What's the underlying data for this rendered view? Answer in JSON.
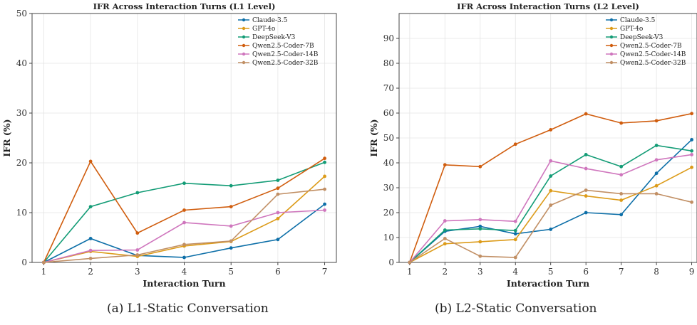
{
  "chart_data": [
    {
      "type": "line",
      "title": "IFR Across Interaction Turns (L1 Level)",
      "xlabel": "Interaction Turn",
      "ylabel": "IFR (%)",
      "x": [
        1,
        2,
        3,
        4,
        5,
        6,
        7
      ],
      "xlim": [
        0.75,
        7.25
      ],
      "ylim": [
        0,
        50
      ],
      "yticks": [
        0,
        10,
        20,
        30,
        40,
        50
      ],
      "grid": true,
      "legend": "top-right",
      "series": [
        {
          "name": "Claude-3.5",
          "color": "#0d6fa8",
          "values": [
            0,
            4.8,
            1.4,
            1.0,
            2.9,
            4.6,
            11.7
          ]
        },
        {
          "name": "GPT-4o",
          "color": "#dc9b19",
          "values": [
            0,
            2.2,
            1.2,
            3.3,
            4.2,
            8.8,
            17.3
          ]
        },
        {
          "name": "DeepSeek-V3",
          "color": "#139c76",
          "values": [
            0,
            11.2,
            14.0,
            15.9,
            15.4,
            16.5,
            20.1
          ]
        },
        {
          "name": "Qwen2.5-Coder-7B",
          "color": "#d05d0e",
          "values": [
            0,
            20.3,
            5.9,
            10.5,
            11.2,
            14.9,
            20.9
          ]
        },
        {
          "name": "Qwen2.5-Coder-14B",
          "color": "#cf76bd",
          "values": [
            0,
            2.4,
            2.5,
            8.0,
            7.3,
            10.0,
            10.5
          ]
        },
        {
          "name": "Qwen2.5-Coder-32B",
          "color": "#c18f64",
          "values": [
            0,
            0.8,
            1.5,
            3.6,
            4.3,
            13.7,
            14.7
          ]
        }
      ]
    },
    {
      "type": "line",
      "title": "IFR Across Interaction Turns (L2 Level)",
      "xlabel": "Interaction Turn",
      "ylabel": "IFR (%)",
      "x": [
        1,
        2,
        3,
        4,
        5,
        6,
        7,
        8,
        9
      ],
      "xlim": [
        0.7,
        9.15
      ],
      "ylim": [
        0,
        100
      ],
      "yticks": [
        0,
        10,
        20,
        30,
        40,
        50,
        60,
        70,
        80,
        90
      ],
      "grid": true,
      "legend": "top-right",
      "series": [
        {
          "name": "Claude-3.5",
          "color": "#0d6fa8",
          "values": [
            0,
            12.5,
            14.5,
            11.5,
            13.3,
            20.0,
            19.2,
            35.8,
            49.3
          ]
        },
        {
          "name": "GPT-4o",
          "color": "#dc9b19",
          "values": [
            0,
            7.5,
            8.3,
            9.2,
            28.8,
            26.7,
            25.0,
            30.8,
            38.2
          ]
        },
        {
          "name": "DeepSeek-V3",
          "color": "#139c76",
          "values": [
            0,
            13.0,
            13.5,
            12.8,
            34.7,
            43.3,
            38.5,
            47.0,
            44.8
          ]
        },
        {
          "name": "Qwen2.5-Coder-7B",
          "color": "#d05d0e",
          "values": [
            0,
            39.2,
            38.5,
            47.5,
            53.3,
            59.7,
            56.0,
            56.9,
            59.8
          ]
        },
        {
          "name": "Qwen2.5-Coder-14B",
          "color": "#cf76bd",
          "values": [
            0,
            16.7,
            17.2,
            16.5,
            40.8,
            37.7,
            35.2,
            41.2,
            43.3
          ]
        },
        {
          "name": "Qwen2.5-Coder-32B",
          "color": "#c18f64",
          "values": [
            0,
            9.6,
            2.5,
            2.0,
            23.0,
            29.0,
            27.6,
            27.6,
            24.2
          ]
        }
      ]
    }
  ],
  "captions": {
    "a": "(a) L1-Static Conversation",
    "b": "(b) L2-Static Conversation"
  }
}
